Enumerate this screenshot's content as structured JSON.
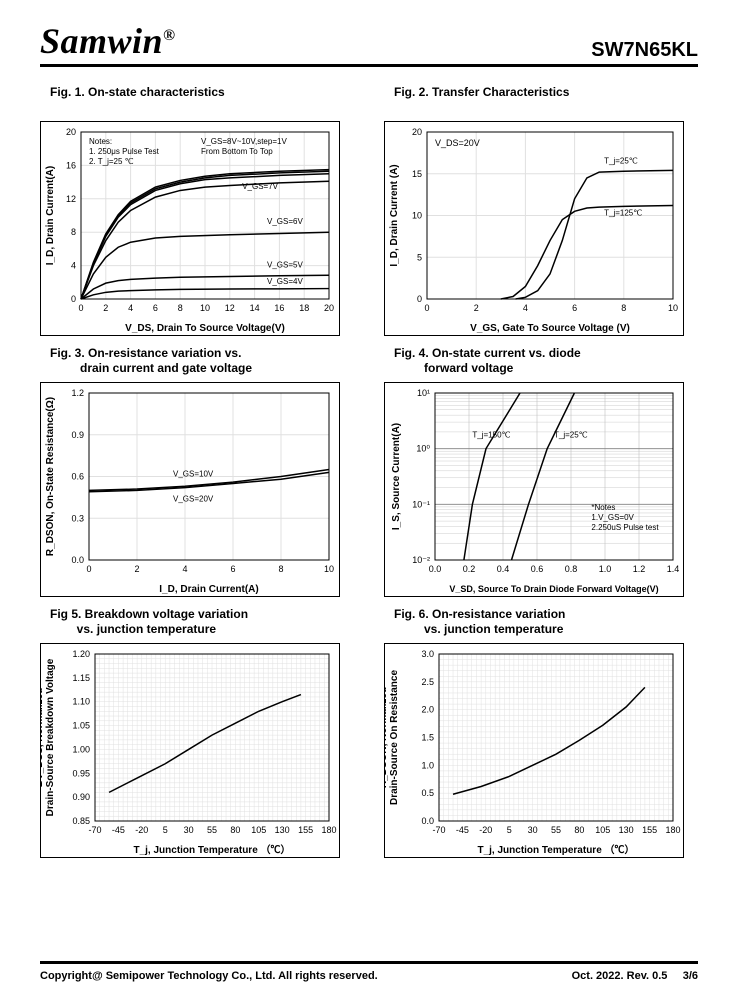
{
  "header": {
    "brand": "Samwin",
    "brand_sup": "®",
    "part_number": "SW7N65KL"
  },
  "footer": {
    "copyright": "Copyright@ Semipower Technology Co., Ltd. All rights reserved.",
    "date_rev": "Oct. 2022. Rev. 0.5",
    "page": "3/6"
  },
  "figures": {
    "fig1": {
      "title": "Fig. 1. On-state characteristics",
      "xlabel": "V_DS, Drain To Source Voltage(V)",
      "ylabel": "I_D, Drain Current(A)",
      "xlim": [
        0,
        20
      ],
      "xtick_step": 2,
      "ylim": [
        0,
        20
      ],
      "ytick_step": 4,
      "grid_color": "#e0e0e0",
      "line_color": "#000000",
      "line_width": 1.5,
      "notes": [
        "Notes:",
        "1. 250μs  Pulse Test",
        "2. T_j=25 ℃"
      ],
      "annotation_top": "V_GS=8V~10V,step=1V\nFrom Bottom To Top",
      "curves": [
        {
          "label": "V_GS=4V",
          "data": [
            [
              0,
              0
            ],
            [
              1,
              0.5
            ],
            [
              2,
              0.8
            ],
            [
              3,
              0.95
            ],
            [
              4,
              1.0
            ],
            [
              6,
              1.1
            ],
            [
              8,
              1.15
            ],
            [
              12,
              1.2
            ],
            [
              16,
              1.22
            ],
            [
              20,
              1.25
            ]
          ]
        },
        {
          "label": "V_GS=5V",
          "data": [
            [
              0,
              0
            ],
            [
              1,
              1.2
            ],
            [
              2,
              1.9
            ],
            [
              3,
              2.2
            ],
            [
              4,
              2.35
            ],
            [
              6,
              2.5
            ],
            [
              8,
              2.6
            ],
            [
              12,
              2.7
            ],
            [
              16,
              2.78
            ],
            [
              20,
              2.85
            ]
          ]
        },
        {
          "label": "V_GS=6V",
          "data": [
            [
              0,
              0
            ],
            [
              1,
              3
            ],
            [
              2,
              5
            ],
            [
              3,
              6.2
            ],
            [
              4,
              6.8
            ],
            [
              6,
              7.3
            ],
            [
              8,
              7.5
            ],
            [
              12,
              7.7
            ],
            [
              16,
              7.85
            ],
            [
              20,
              8.0
            ]
          ]
        },
        {
          "label": "V_GS=7V",
          "data": [
            [
              0,
              0
            ],
            [
              1,
              4
            ],
            [
              2,
              7
            ],
            [
              3,
              9.2
            ],
            [
              4,
              10.6
            ],
            [
              6,
              12.2
            ],
            [
              8,
              13.0
            ],
            [
              10,
              13.4
            ],
            [
              12,
              13.6
            ],
            [
              16,
              13.9
            ],
            [
              20,
              14.1
            ]
          ]
        },
        {
          "label": "",
          "data": [
            [
              0,
              0
            ],
            [
              1,
              4.2
            ],
            [
              2,
              7.5
            ],
            [
              3,
              9.8
            ],
            [
              4,
              11.3
            ],
            [
              6,
              13.0
            ],
            [
              8,
              13.8
            ],
            [
              10,
              14.3
            ],
            [
              12,
              14.5
            ],
            [
              16,
              14.8
            ],
            [
              20,
              15.0
            ]
          ]
        },
        {
          "label": "",
          "data": [
            [
              0,
              0
            ],
            [
              1,
              4.3
            ],
            [
              2,
              7.7
            ],
            [
              3,
              10.0
            ],
            [
              4,
              11.5
            ],
            [
              6,
              13.2
            ],
            [
              8,
              14.0
            ],
            [
              10,
              14.5
            ],
            [
              12,
              14.8
            ],
            [
              16,
              15.1
            ],
            [
              20,
              15.3
            ]
          ]
        },
        {
          "label": "",
          "data": [
            [
              0,
              0
            ],
            [
              1,
              4.4
            ],
            [
              2,
              7.8
            ],
            [
              3,
              10.1
            ],
            [
              4,
              11.7
            ],
            [
              6,
              13.4
            ],
            [
              8,
              14.2
            ],
            [
              10,
              14.7
            ],
            [
              12,
              15.0
            ],
            [
              16,
              15.3
            ],
            [
              20,
              15.5
            ]
          ]
        }
      ]
    },
    "fig2": {
      "title": "Fig. 2. Transfer Characteristics",
      "xlabel": "V_GS,  Gate To Source Voltage (V)",
      "ylabel": "I_D,  Drain Current (A)",
      "xlim": [
        0,
        10
      ],
      "xtick_step": 2,
      "ylim": [
        0,
        20
      ],
      "ytick_step": 5,
      "grid_color": "#e0e0e0",
      "line_color": "#000000",
      "line_width": 1.5,
      "note_top": "V_DS=20V",
      "curves": [
        {
          "label": "T_j=25℃",
          "data": [
            [
              3.6,
              0
            ],
            [
              4.0,
              0.2
            ],
            [
              4.5,
              1
            ],
            [
              5.0,
              3
            ],
            [
              5.5,
              7
            ],
            [
              6.0,
              12
            ],
            [
              6.5,
              14.5
            ],
            [
              7.0,
              15.2
            ],
            [
              8,
              15.3
            ],
            [
              10,
              15.4
            ]
          ]
        },
        {
          "label": "T_j=125℃",
          "data": [
            [
              3.0,
              0
            ],
            [
              3.5,
              0.3
            ],
            [
              4.0,
              1.5
            ],
            [
              4.5,
              4
            ],
            [
              5.0,
              7
            ],
            [
              5.5,
              9.5
            ],
            [
              6.0,
              10.5
            ],
            [
              6.5,
              10.9
            ],
            [
              7.0,
              11.0
            ],
            [
              8,
              11.1
            ],
            [
              10,
              11.2
            ]
          ]
        }
      ]
    },
    "fig3": {
      "title": "Fig. 3. On-resistance variation vs.\n         drain current and gate voltage",
      "xlabel": "I_D, Drain Current(A)",
      "ylabel": "R_DSON, On-State Resistance(Ω)",
      "xlim": [
        0,
        10
      ],
      "xtick_step": 2,
      "ylim": [
        0,
        1.2
      ],
      "ytick_step": 0.3,
      "grid_color": "#e0e0e0",
      "line_color": "#000000",
      "line_width": 1.5,
      "curves": [
        {
          "label": "V_GS=10V",
          "data": [
            [
              0,
              0.5
            ],
            [
              2,
              0.51
            ],
            [
              4,
              0.53
            ],
            [
              6,
              0.56
            ],
            [
              8,
              0.6
            ],
            [
              10,
              0.65
            ]
          ]
        },
        {
          "label": "V_GS=20V",
          "data": [
            [
              0,
              0.49
            ],
            [
              2,
              0.5
            ],
            [
              4,
              0.52
            ],
            [
              6,
              0.55
            ],
            [
              8,
              0.58
            ],
            [
              10,
              0.63
            ]
          ]
        }
      ]
    },
    "fig4": {
      "title": "Fig. 4. On-state current vs. diode\n         forward voltage",
      "xlabel": "V_SD, Source To Drain Diode Forward Voltage(V)",
      "ylabel": "I_S, Source Current(A)",
      "xlim": [
        0,
        1.4
      ],
      "xtick_step": 0.2,
      "ylim_log": [
        -2,
        1
      ],
      "yticks_log": [
        "10⁻²",
        "10⁻¹",
        "10⁰",
        "10¹"
      ],
      "grid_color": "#c0c0c0",
      "line_color": "#000000",
      "line_width": 1.5,
      "notes": [
        "*Notes",
        "1.V_GS=0V",
        "2.250uS Pulse test"
      ],
      "curves": [
        {
          "label": "T_j=150℃",
          "data_log": [
            [
              0.17,
              -2
            ],
            [
              0.22,
              -1
            ],
            [
              0.3,
              0
            ],
            [
              0.5,
              1
            ]
          ]
        },
        {
          "label": "T_j=25℃",
          "data_log": [
            [
              0.45,
              -2
            ],
            [
              0.55,
              -1
            ],
            [
              0.66,
              0
            ],
            [
              0.82,
              1
            ]
          ]
        }
      ]
    },
    "fig5": {
      "title": "Fig 5. Breakdown voltage variation\n        vs. junction temperature",
      "xlabel": "T_j, Junction Temperature （℃）",
      "ylabel": "BV_DSS, Normalized\nDrain-Source Breakdown Voltage",
      "xlim": [
        -70,
        180
      ],
      "xtick_step": 25,
      "ylim": [
        0.85,
        1.2
      ],
      "ytick_step": 0.05,
      "y_decimals": 2,
      "grid_color": "#e0e0e0",
      "line_color": "#000000",
      "line_width": 1.5,
      "curve": [
        [
          -55,
          0.91
        ],
        [
          -25,
          0.94
        ],
        [
          5,
          0.97
        ],
        [
          30,
          1.0
        ],
        [
          55,
          1.03
        ],
        [
          80,
          1.055
        ],
        [
          105,
          1.08
        ],
        [
          130,
          1.1
        ],
        [
          150,
          1.115
        ]
      ]
    },
    "fig6": {
      "title": "Fig. 6. On-resistance variation\n         vs. junction temperature",
      "xlabel": "T_j, Junction Temperature （℃）",
      "ylabel": "R_DSON, Normalized\nDrain-Source On Resistance",
      "xlim": [
        -70,
        180
      ],
      "xtick_step": 25,
      "ylim": [
        0,
        3.0
      ],
      "ytick_step": 0.5,
      "y_decimals": 1,
      "grid_color": "#e0e0e0",
      "line_color": "#000000",
      "line_width": 1.5,
      "curve": [
        [
          -55,
          0.48
        ],
        [
          -25,
          0.62
        ],
        [
          5,
          0.8
        ],
        [
          30,
          1.0
        ],
        [
          55,
          1.2
        ],
        [
          80,
          1.45
        ],
        [
          105,
          1.72
        ],
        [
          130,
          2.05
        ],
        [
          150,
          2.4
        ]
      ]
    }
  }
}
